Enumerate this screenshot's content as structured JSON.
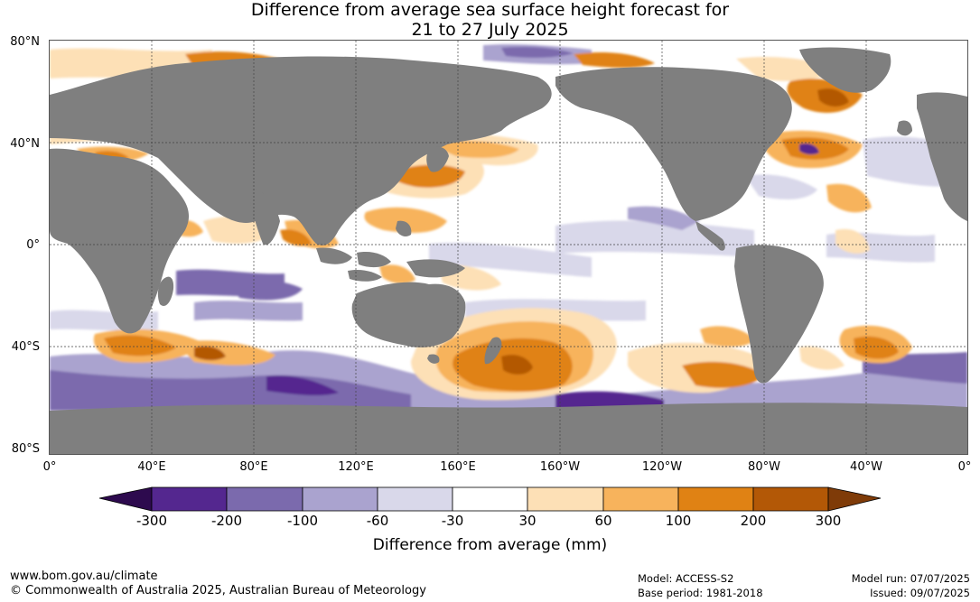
{
  "title": {
    "line1": "Difference from average sea surface height forecast for",
    "line2": "21 to 27 July 2025"
  },
  "map": {
    "lat_labels": [
      "80°N",
      "40°N",
      "0°",
      "40°S",
      "80°S"
    ],
    "lon_labels": [
      "0°",
      "40°E",
      "80°E",
      "120°E",
      "160°E",
      "160°W",
      "120°W",
      "80°W",
      "40°W",
      "0°"
    ],
    "land_color": "#7f7f7f",
    "ocean_color": "#ffffff"
  },
  "legend": {
    "title": "Difference from average (mm)",
    "ticks": [
      "-300",
      "-200",
      "-100",
      "-60",
      "-30",
      "30",
      "60",
      "100",
      "200",
      "300"
    ],
    "colors": [
      "#2d0a4e",
      "#54278f",
      "#7b6aad",
      "#aaa3cf",
      "#d9d8ea",
      "#ffffff",
      "#fde0b6",
      "#f7b35c",
      "#e08214",
      "#b35806",
      "#7f3b08"
    ]
  },
  "footer": {
    "url": "www.bom.gov.au/climate",
    "copyright": "© Commonwealth of Australia 2025, Australian Bureau of Meteorology",
    "model": "Model: ACCESS-S2",
    "base_period": "Base period: 1981-2018",
    "model_run": "Model run: 07/07/2025",
    "issued": "Issued: 09/07/2025"
  }
}
